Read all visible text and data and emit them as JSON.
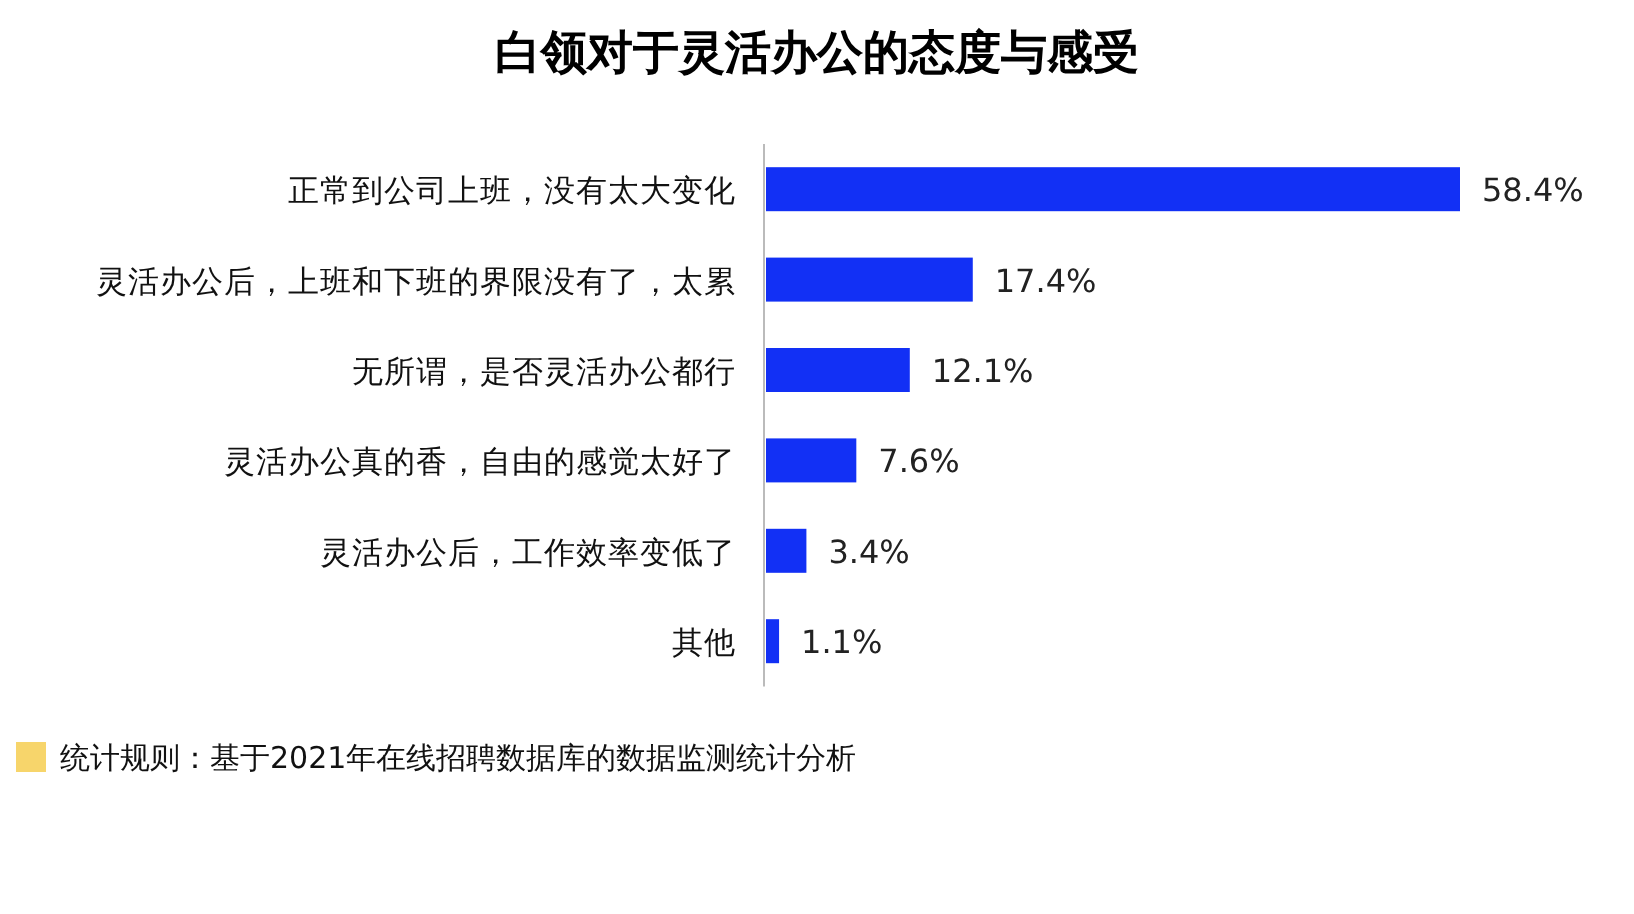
{
  "chart_data": {
    "type": "bar",
    "orientation": "horizontal",
    "title": "白领对于灵活办公的态度与感受",
    "categories": [
      "正常到公司上班，没有太大变化",
      "灵活办公后，上班和下班的界限没有了，太累",
      "无所谓，是否灵活办公都行",
      "灵活办公真的香，自由的感觉太好了",
      "灵活办公后，工作效率变低了",
      "其他"
    ],
    "values": [
      58.4,
      17.4,
      12.1,
      7.6,
      3.4,
      1.1
    ],
    "value_labels": [
      "58.4%",
      "17.4%",
      "12.1%",
      "7.6%",
      "3.4%",
      "1.1%"
    ],
    "color": "#1230f5",
    "annotations": [
      "统计规则：基于2021年在线招聘数据库的数据监测统计分析"
    ]
  }
}
